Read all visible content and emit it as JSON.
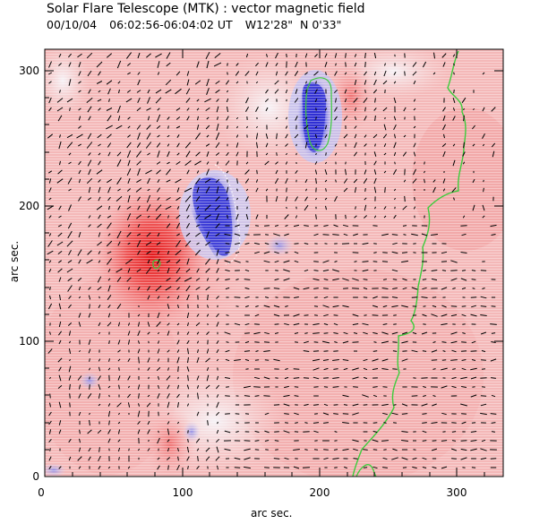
{
  "header": {
    "title": "Solar Flare Telescope (MTK) : vector magnetic field",
    "date": "00/10/04",
    "time_range": "06:02:56-06:04:02 UT",
    "position": "W12'28\"  N 0'33\""
  },
  "axes": {
    "xlabel": "arc sec.",
    "ylabel": "arc sec.",
    "xticks": [
      "0",
      "100",
      "200",
      "300"
    ],
    "yticks": [
      "0",
      "100",
      "200",
      "300"
    ],
    "xrange": [
      0,
      340
    ],
    "yrange": [
      0,
      315
    ]
  },
  "colors": {
    "positive": "#e8383a",
    "negative": "#3a3ad8",
    "neutral_line": "#3ccc3c",
    "vector": "#000000"
  }
}
